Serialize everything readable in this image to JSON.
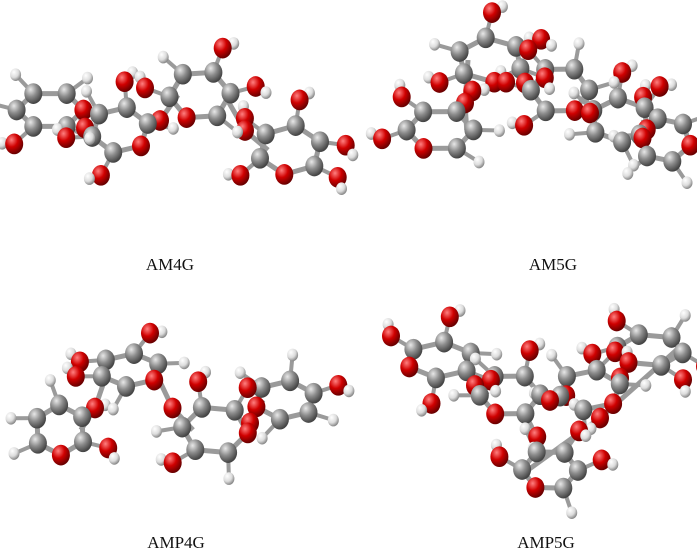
{
  "panels": [
    {
      "label": "AM4G"
    },
    {
      "label": "AM5G"
    },
    {
      "label": "AMP4G"
    },
    {
      "label": "AMP5G"
    }
  ]
}
